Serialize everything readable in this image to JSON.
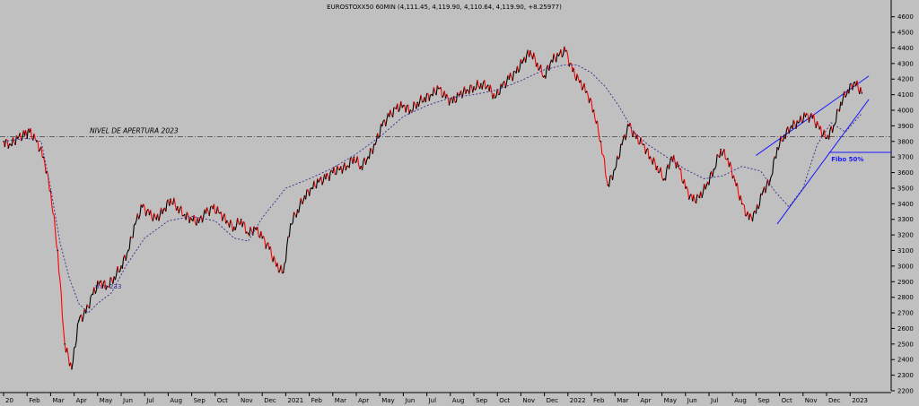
{
  "chart_data": {
    "type": "line",
    "title": "EUROSTOXX50 60MIN (4,111.45, 4,119.90, 4,110.64, 4,119.90, +8.25977)",
    "ylim": [
      2200,
      4650
    ],
    "yticks": [
      2200,
      2300,
      2400,
      2500,
      2600,
      2700,
      2800,
      2900,
      3000,
      3100,
      3200,
      3300,
      3400,
      3500,
      3600,
      3700,
      3800,
      3900,
      4000,
      4100,
      4200,
      4300,
      4400,
      4500,
      4600
    ],
    "x_labels": [
      "20",
      "Feb",
      "Mar",
      "Apr",
      "May",
      "Jun",
      "Jul",
      "Aug",
      "Sep",
      "Oct",
      "Nov",
      "Dec",
      "2021",
      "Feb",
      "Mar",
      "Apr",
      "May",
      "Jun",
      "Jul",
      "Aug",
      "Sep",
      "Oct",
      "Nov",
      "Dec",
      "2022",
      "Feb",
      "Mar",
      "Apr",
      "May",
      "Jun",
      "Jul",
      "Aug",
      "Sep",
      "Oct",
      "Nov",
      "Dec",
      "2023"
    ],
    "x_label_idx": [
      0,
      1,
      2,
      3,
      4,
      5,
      6,
      7,
      8,
      9,
      10,
      11,
      12,
      13,
      14,
      15,
      16,
      17,
      18,
      19,
      20,
      21,
      22,
      23,
      24,
      25,
      26,
      27,
      28,
      29,
      30,
      31,
      32,
      33,
      34,
      35,
      36
    ],
    "series": [
      {
        "type": "price",
        "color": "#000000",
        "down_color": "#ff0000",
        "x": [
          0,
          0.3,
          0.6,
          0.9,
          1.1,
          1.4,
          1.7,
          2.0,
          2.3,
          2.6,
          2.9,
          3.2,
          3.5,
          3.8,
          4.1,
          4.4,
          4.7,
          5.0,
          5.3,
          5.6,
          5.9,
          6.2,
          6.5,
          6.8,
          7.1,
          7.4,
          7.7,
          8.0,
          8.3,
          8.6,
          8.9,
          9.2,
          9.5,
          9.8,
          10.1,
          10.4,
          10.7,
          11.0,
          11.3,
          11.6,
          11.9,
          12.2,
          12.5,
          12.8,
          13.1,
          13.4,
          13.7,
          14.0,
          14.3,
          14.6,
          14.9,
          15.2,
          15.5,
          15.8,
          16.1,
          16.4,
          16.7,
          17.0,
          17.3,
          17.6,
          17.9,
          18.2,
          18.5,
          18.8,
          19.1,
          19.4,
          19.7,
          20.0,
          20.3,
          20.6,
          20.9,
          21.2,
          21.5,
          21.8,
          22.1,
          22.4,
          22.7,
          23.0,
          23.3,
          23.6,
          23.9,
          24.2,
          24.5,
          24.8,
          25.1,
          25.4,
          25.7,
          26.0,
          26.3,
          26.6,
          26.9,
          27.2,
          27.5,
          27.8,
          28.1,
          28.4,
          28.7,
          29.0,
          29.3,
          29.6,
          29.9,
          30.2,
          30.5,
          30.8,
          31.1,
          31.4,
          31.7,
          32.0,
          32.3,
          32.6,
          32.9,
          33.2,
          33.5,
          33.8,
          34.1,
          34.4,
          34.7,
          35.0,
          35.3,
          35.6,
          35.9,
          36.2,
          36.5
        ],
        "values": [
          3800,
          3780,
          3820,
          3840,
          3860,
          3800,
          3700,
          3480,
          3100,
          2500,
          2340,
          2650,
          2700,
          2820,
          2900,
          2870,
          2930,
          3000,
          3100,
          3270,
          3380,
          3330,
          3300,
          3360,
          3430,
          3380,
          3330,
          3300,
          3280,
          3340,
          3370,
          3340,
          3290,
          3250,
          3300,
          3210,
          3240,
          3180,
          3110,
          3000,
          2960,
          3270,
          3360,
          3450,
          3500,
          3540,
          3560,
          3600,
          3620,
          3640,
          3700,
          3640,
          3700,
          3780,
          3900,
          3960,
          4010,
          4030,
          4000,
          4050,
          4080,
          4100,
          4140,
          4080,
          4050,
          4100,
          4130,
          4150,
          4170,
          4160,
          4080,
          4150,
          4200,
          4240,
          4320,
          4380,
          4300,
          4220,
          4320,
          4350,
          4380,
          4250,
          4180,
          4120,
          4000,
          3800,
          3520,
          3620,
          3780,
          3900,
          3820,
          3780,
          3700,
          3640,
          3560,
          3700,
          3640,
          3500,
          3420,
          3440,
          3520,
          3620,
          3750,
          3690,
          3550,
          3400,
          3300,
          3340,
          3480,
          3550,
          3760,
          3840,
          3900,
          3920,
          3960,
          3950,
          3880,
          3820,
          3900,
          4050,
          4130,
          4180,
          4110
        ]
      },
      {
        "name": "mm 233",
        "type": "ma",
        "color": "#3c2a8c",
        "x": [
          0,
          1.0,
          1.6,
          2.0,
          2.4,
          2.8,
          3.2,
          3.6,
          4.0,
          4.6,
          5.2,
          6.0,
          7.0,
          8.0,
          9.0,
          9.8,
          10.4,
          11.0,
          12.0,
          13.0,
          14.0,
          15.0,
          16.0,
          17.0,
          18.0,
          19.0,
          20.0,
          21.0,
          22.0,
          23.0,
          23.8,
          24.4,
          25.0,
          25.6,
          26.2,
          26.8,
          27.4,
          28.2,
          29.0,
          29.8,
          30.6,
          31.4,
          32.2,
          32.8,
          33.4,
          34.0,
          34.6,
          35.2,
          35.8,
          36.5
        ],
        "values": [
          3800,
          3820,
          3800,
          3500,
          3150,
          2920,
          2760,
          2700,
          2760,
          2830,
          3000,
          3180,
          3290,
          3320,
          3290,
          3180,
          3160,
          3310,
          3500,
          3560,
          3630,
          3720,
          3830,
          3960,
          4030,
          4080,
          4100,
          4130,
          4190,
          4260,
          4290,
          4290,
          4240,
          4150,
          4020,
          3860,
          3780,
          3700,
          3620,
          3560,
          3580,
          3640,
          3610,
          3480,
          3380,
          3500,
          3780,
          3920,
          3860,
          3980
        ]
      }
    ],
    "annotations": {
      "apertura": {
        "value": 3830,
        "label": "NIVEL DE APERTURA 2023"
      },
      "fibo": {
        "value": 3730,
        "label": "Fibo 50%"
      },
      "mm_label": "mm 233",
      "channel_upper": {
        "from": [
          32.0,
          3710
        ],
        "to": [
          36.8,
          4220
        ]
      },
      "channel_lower": {
        "from": [
          32.9,
          3270
        ],
        "to": [
          36.8,
          4070
        ]
      }
    }
  }
}
